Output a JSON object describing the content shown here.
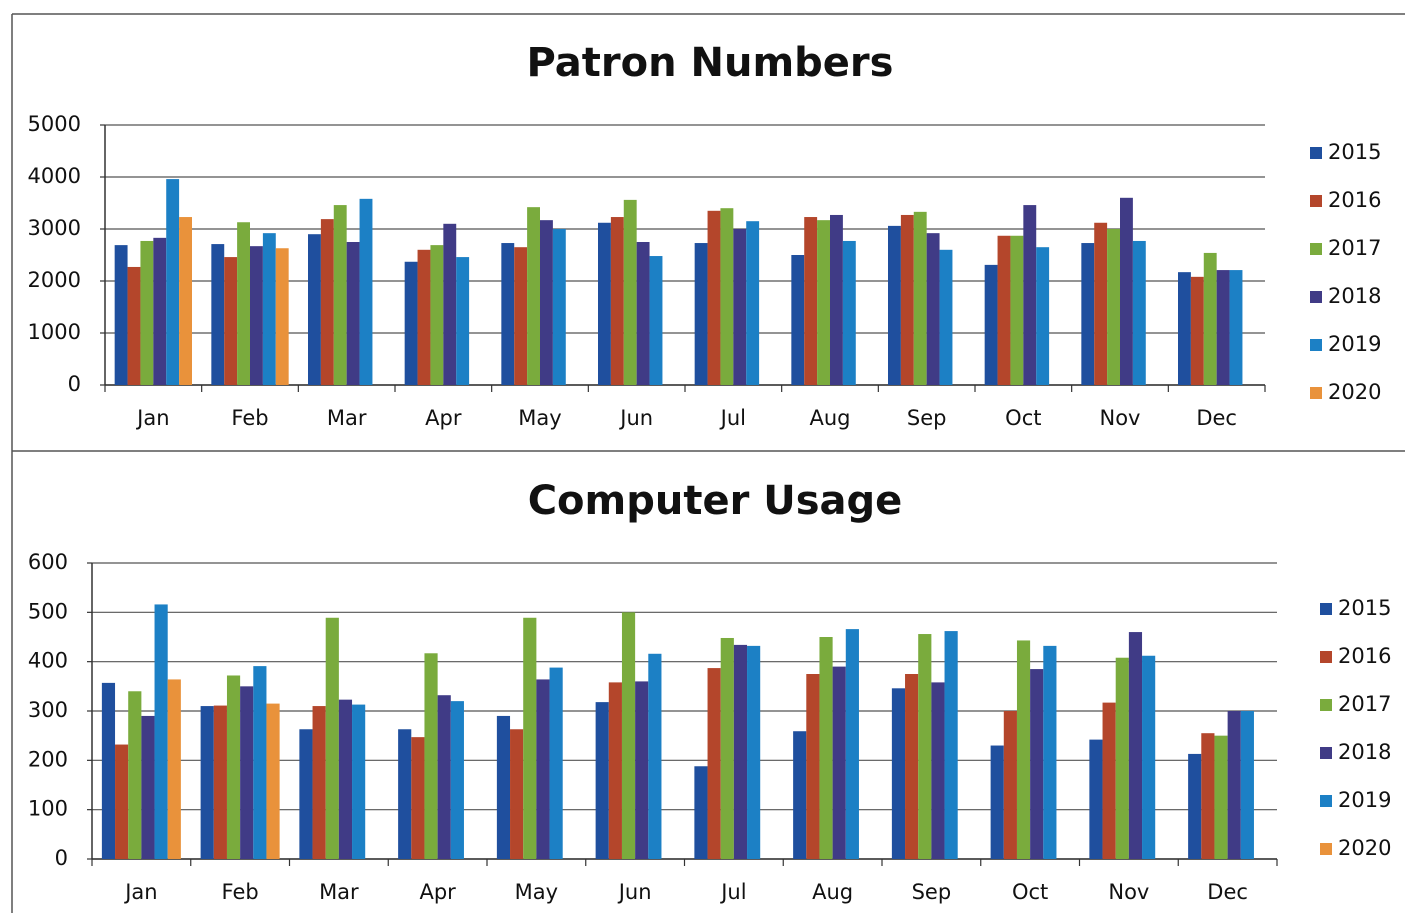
{
  "chart_data": [
    {
      "type": "bar",
      "title": "Patron Numbers",
      "categories": [
        "Jan",
        "Feb",
        "Mar",
        "Apr",
        "May",
        "Jun",
        "Jul",
        "Aug",
        "Sep",
        "Oct",
        "Nov",
        "Dec"
      ],
      "series": [
        {
          "name": "2015",
          "color": "#1f4f9e",
          "values": [
            2690,
            2710,
            2900,
            2370,
            2730,
            3120,
            2730,
            2500,
            3060,
            2310,
            2730,
            2170
          ]
        },
        {
          "name": "2016",
          "color": "#b4462b",
          "values": [
            2270,
            2460,
            3190,
            2600,
            2650,
            3230,
            3350,
            3230,
            3270,
            2870,
            3120,
            2080
          ]
        },
        {
          "name": "2017",
          "color": "#7aab3d",
          "values": [
            2770,
            3130,
            3460,
            2690,
            3420,
            3560,
            3400,
            3170,
            3330,
            2870,
            3000,
            2540
          ]
        },
        {
          "name": "2018",
          "color": "#403b86",
          "values": [
            2830,
            2670,
            2750,
            3100,
            3170,
            2750,
            3000,
            3270,
            2920,
            3460,
            3600,
            2210
          ]
        },
        {
          "name": "2019",
          "color": "#1c80c5",
          "values": [
            3960,
            2920,
            3580,
            2460,
            3000,
            2480,
            3150,
            2770,
            2600,
            2650,
            2770,
            2210
          ]
        },
        {
          "name": "2020",
          "color": "#e9923b",
          "values": [
            3230,
            2630,
            null,
            null,
            null,
            null,
            null,
            null,
            null,
            null,
            null,
            null
          ]
        }
      ],
      "ylim": [
        0,
        5000
      ],
      "yticks": [
        0,
        1000,
        2000,
        3000,
        4000,
        5000
      ],
      "grid": true,
      "legend": "right"
    },
    {
      "type": "bar",
      "title": "Computer Usage",
      "categories": [
        "Jan",
        "Feb",
        "Mar",
        "Apr",
        "May",
        "Jun",
        "Jul",
        "Aug",
        "Sep",
        "Oct",
        "Nov",
        "Dec"
      ],
      "series": [
        {
          "name": "2015",
          "color": "#1f4f9e",
          "values": [
            357,
            310,
            263,
            263,
            290,
            318,
            188,
            259,
            346,
            230,
            242,
            213
          ]
        },
        {
          "name": "2016",
          "color": "#b4462b",
          "values": [
            232,
            311,
            310,
            247,
            263,
            358,
            387,
            375,
            375,
            300,
            317,
            255
          ]
        },
        {
          "name": "2017",
          "color": "#7aab3d",
          "values": [
            340,
            372,
            489,
            417,
            489,
            500,
            448,
            450,
            456,
            443,
            408,
            250
          ]
        },
        {
          "name": "2018",
          "color": "#403b86",
          "values": [
            290,
            350,
            323,
            332,
            364,
            360,
            434,
            390,
            358,
            385,
            460,
            300
          ]
        },
        {
          "name": "2019",
          "color": "#1c80c5",
          "values": [
            516,
            391,
            313,
            320,
            388,
            416,
            432,
            466,
            462,
            432,
            412,
            300
          ]
        },
        {
          "name": "2020",
          "color": "#e9923b",
          "values": [
            364,
            315,
            null,
            null,
            null,
            null,
            null,
            null,
            null,
            null,
            null,
            null
          ]
        }
      ],
      "ylim": [
        0,
        600
      ],
      "yticks": [
        0,
        100,
        200,
        300,
        400,
        500,
        600
      ],
      "grid": true,
      "legend": "right"
    }
  ]
}
